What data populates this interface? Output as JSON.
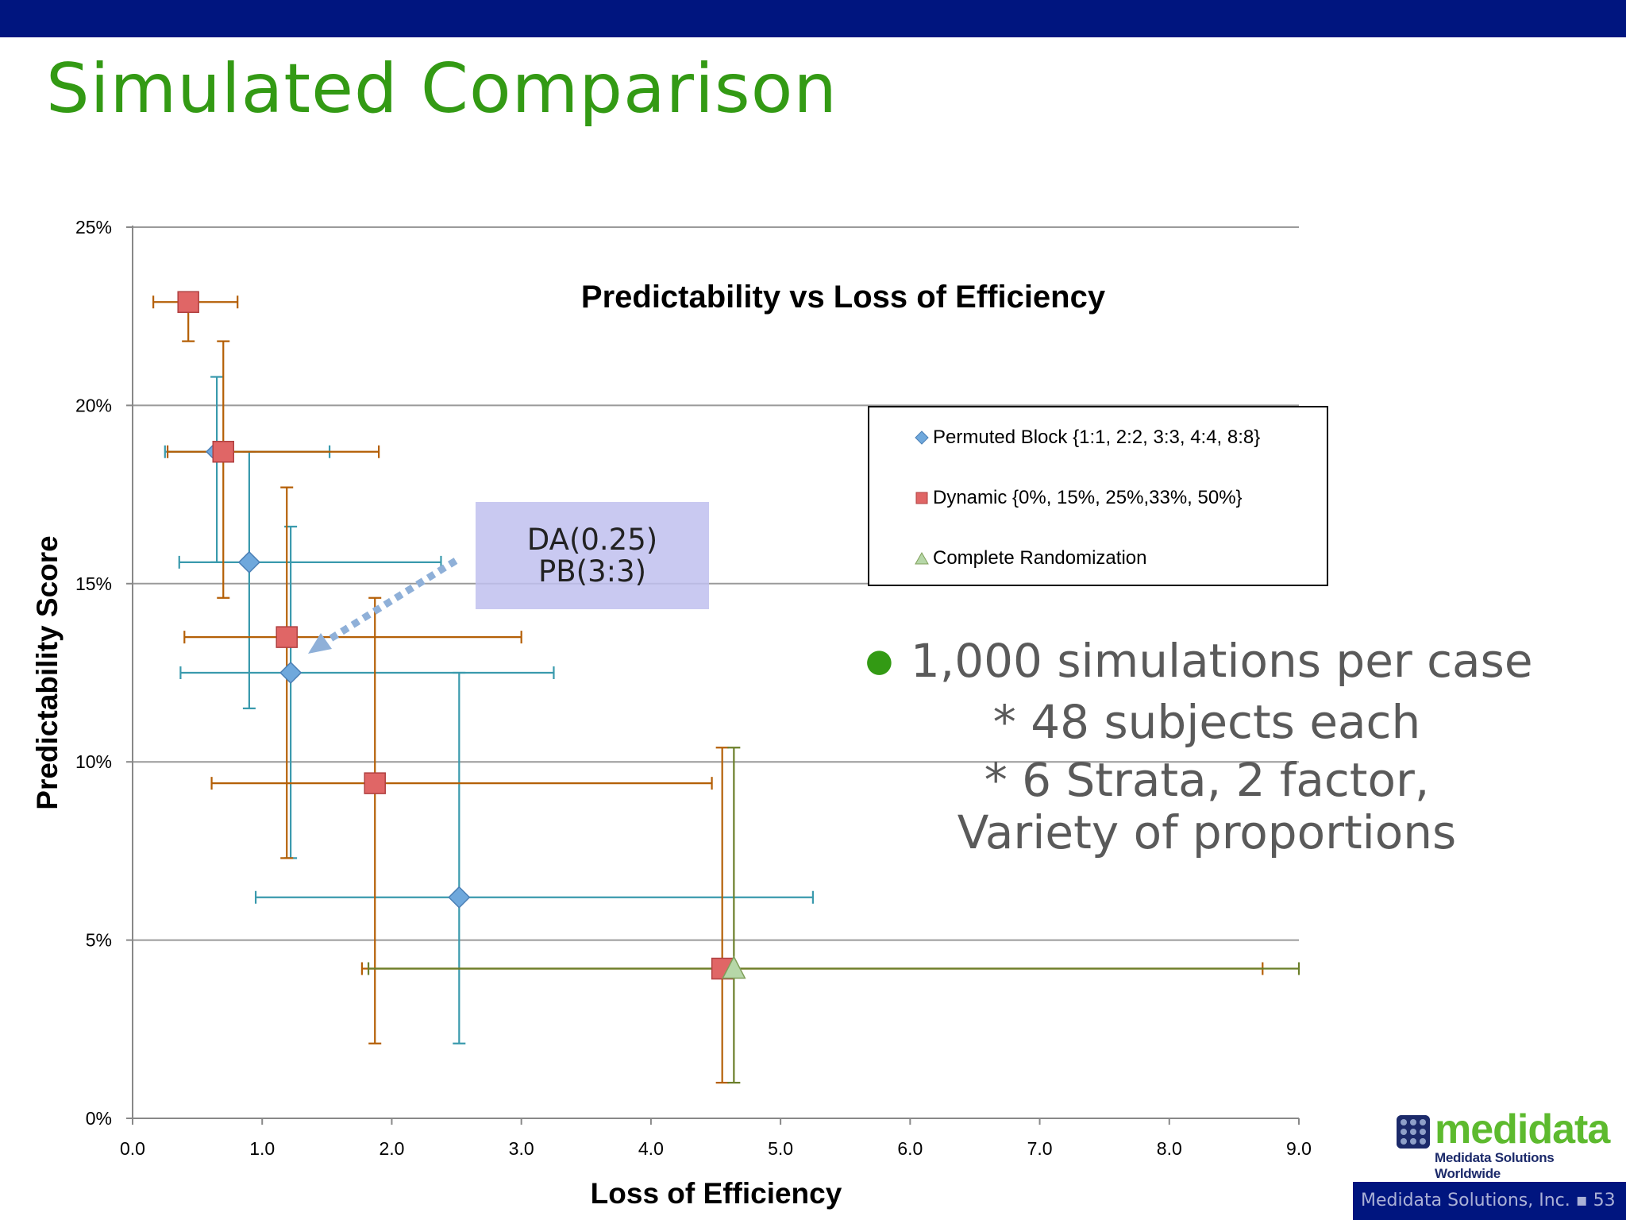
{
  "slide": {
    "title": "Simulated Comparison",
    "footer_text": "Medidata Solutions, Inc.",
    "page_number": "53",
    "brand_color": "#00157f",
    "title_color": "#339a14"
  },
  "logo": {
    "word": "medidata",
    "tagline": "Medidata Solutions Worldwide"
  },
  "callout": {
    "line1": "DA(0.25)",
    "line2": "PB(3:3)"
  },
  "bullets": {
    "main": "1,000 simulations per case",
    "sub1": "* 48 subjects each",
    "sub2": "* 6 Strata, 2 factor,",
    "sub3": "Variety of proportions"
  },
  "chart_data": {
    "type": "scatter",
    "title": "Predictability vs Loss of Efficiency",
    "xlabel": "Loss of Efficiency",
    "ylabel": "Predictability Score",
    "xlim": [
      0,
      9
    ],
    "ylim": [
      0,
      25
    ],
    "x_ticks": [
      "0.0",
      "1.0",
      "2.0",
      "3.0",
      "4.0",
      "5.0",
      "6.0",
      "7.0",
      "8.0",
      "9.0"
    ],
    "y_ticks": [
      "0%",
      "5%",
      "10%",
      "15%",
      "20%",
      "25%"
    ],
    "grid": "horizontal",
    "legend_position": "right",
    "series": [
      {
        "name": "Permuted Block {1:1, 2:2, 3:3, 4:4, 8:8}",
        "marker": "diamond",
        "color": "#6fa8dc",
        "error_color": "#3a9aad",
        "points": [
          {
            "x": 0.65,
            "y": 18.7,
            "xerr": [
              0.25,
              1.52
            ],
            "yerr": [
              15.6,
              20.8
            ]
          },
          {
            "x": 0.9,
            "y": 15.6,
            "xerr": [
              0.36,
              2.38
            ],
            "yerr": [
              11.5,
              18.7
            ]
          },
          {
            "x": 1.22,
            "y": 12.5,
            "xerr": [
              0.37,
              3.25
            ],
            "yerr": [
              7.3,
              16.6
            ]
          },
          {
            "x": 2.52,
            "y": 6.2,
            "xerr": [
              0.95,
              5.25
            ],
            "yerr": [
              2.1,
              12.5
            ]
          }
        ]
      },
      {
        "name": "Dynamic {0%, 15%, 25%,33%, 50%}",
        "marker": "square",
        "color": "#e06666",
        "error_color": "#b45f06",
        "points": [
          {
            "x": 0.43,
            "y": 22.9,
            "xerr": [
              0.16,
              0.81
            ],
            "yerr": [
              21.8,
              22.9
            ]
          },
          {
            "x": 0.7,
            "y": 18.7,
            "xerr": [
              0.27,
              1.9
            ],
            "yerr": [
              14.6,
              21.8
            ]
          },
          {
            "x": 1.19,
            "y": 13.5,
            "xerr": [
              0.4,
              3.0
            ],
            "yerr": [
              7.3,
              17.7
            ]
          },
          {
            "x": 1.87,
            "y": 9.4,
            "xerr": [
              0.61,
              4.47
            ],
            "yerr": [
              2.1,
              14.6
            ]
          },
          {
            "x": 4.55,
            "y": 4.2,
            "xerr": [
              1.77,
              8.72
            ],
            "yerr": [
              1.0,
              10.4
            ]
          }
        ]
      },
      {
        "name": "Complete Randomization",
        "marker": "triangle",
        "color": "#b6d7a8",
        "error_color": "#6b7f2a",
        "points": [
          {
            "x": 4.64,
            "y": 4.2,
            "xerr": [
              1.82,
              9.0
            ],
            "yerr": [
              1.0,
              10.4
            ]
          }
        ]
      }
    ]
  }
}
